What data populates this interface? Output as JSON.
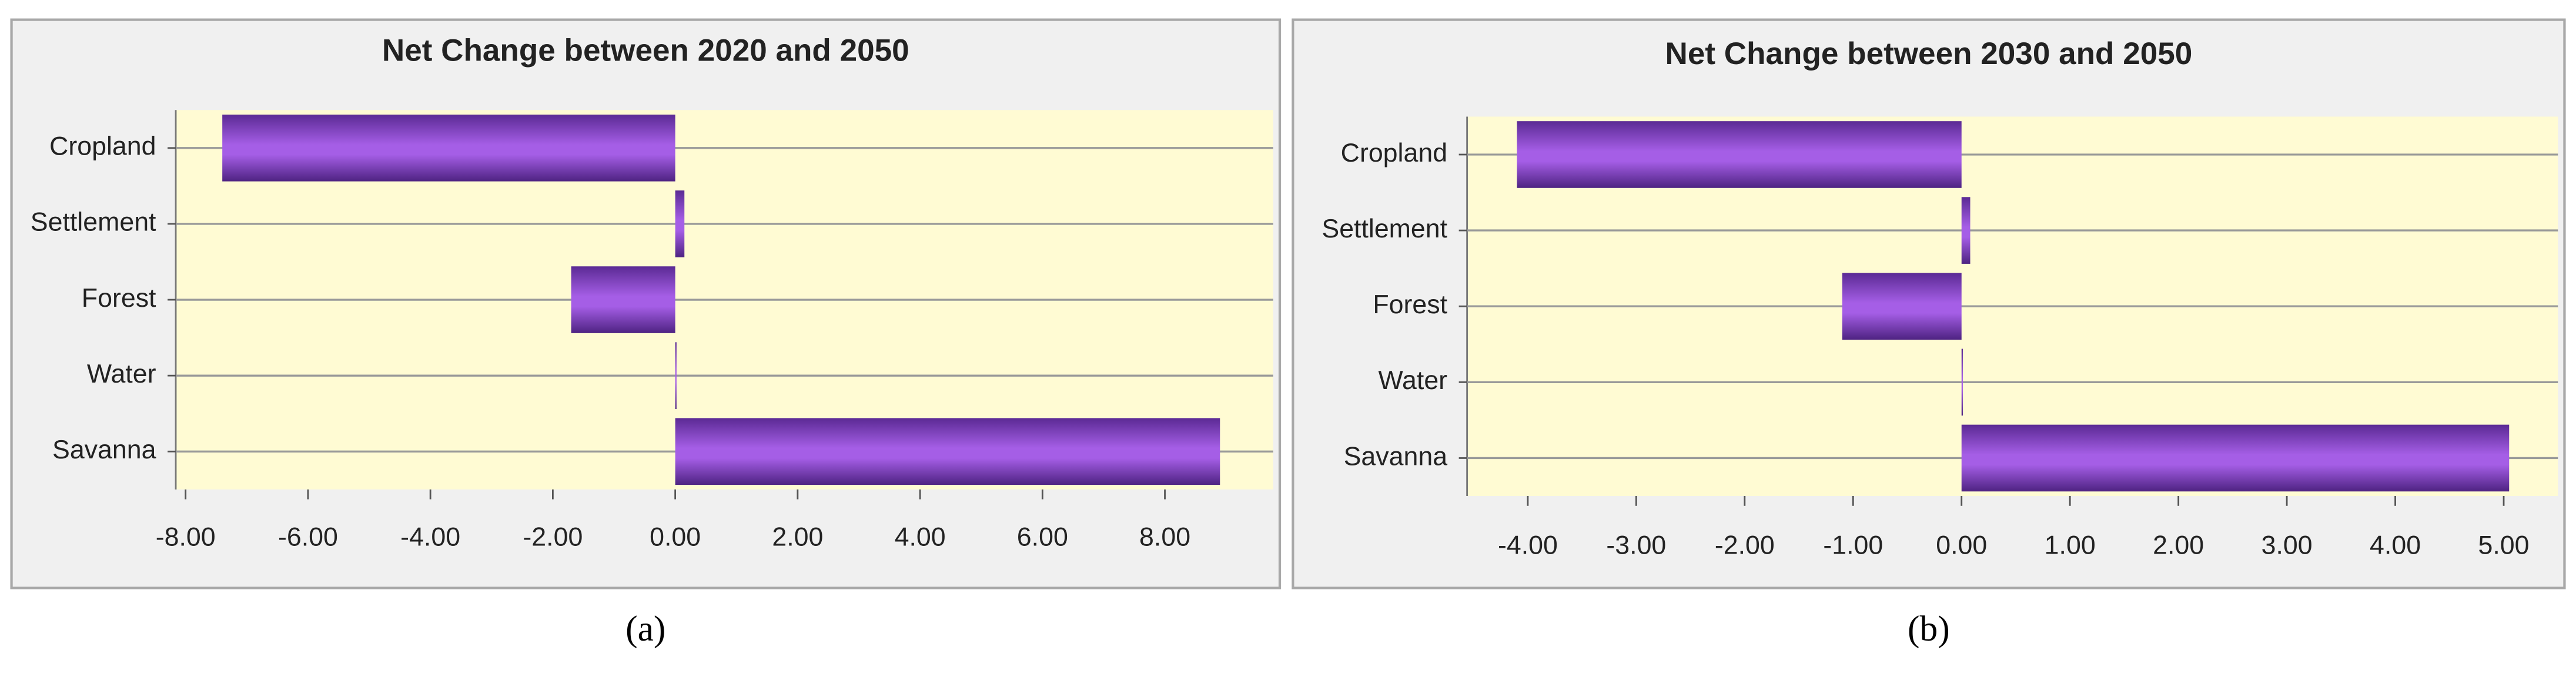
{
  "chart_data": [
    {
      "type": "bar",
      "orientation": "horizontal",
      "title": "Net Change between 2020 and 2050",
      "caption": "(a)",
      "categories": [
        "Cropland",
        "Settlement",
        "Forest",
        "Water",
        "Savanna"
      ],
      "values": [
        -7.4,
        0.15,
        -1.7,
        0.02,
        8.9
      ],
      "color": "#a55ee6",
      "xlim": [
        -8.16,
        9.77
      ],
      "xticks": [
        {
          "value": -8,
          "label": "-8.00"
        },
        {
          "value": -6,
          "label": "-6.00"
        },
        {
          "value": -4,
          "label": "-4.00"
        },
        {
          "value": -2,
          "label": "-2.00"
        },
        {
          "value": 0,
          "label": "0.00"
        },
        {
          "value": 2,
          "label": "2.00"
        },
        {
          "value": 4,
          "label": "4.00"
        },
        {
          "value": 6,
          "label": "6.00"
        },
        {
          "value": 8,
          "label": "8.00"
        }
      ],
      "grid": true
    },
    {
      "type": "bar",
      "orientation": "horizontal",
      "title": "Net Change between 2030 and 2050",
      "caption": "(b)",
      "categories": [
        "Cropland",
        "Settlement",
        "Forest",
        "Water",
        "Savanna"
      ],
      "values": [
        -4.1,
        0.08,
        -1.1,
        0.01,
        5.05
      ],
      "color": "#a55ee6",
      "xlim": [
        -4.56,
        5.5
      ],
      "xticks": [
        {
          "value": -4,
          "label": "-4.00"
        },
        {
          "value": -3,
          "label": "-3.00"
        },
        {
          "value": -2,
          "label": "-2.00"
        },
        {
          "value": -1,
          "label": "-1.00"
        },
        {
          "value": 0,
          "label": "0.00"
        },
        {
          "value": 1,
          "label": "1.00"
        },
        {
          "value": 2,
          "label": "2.00"
        },
        {
          "value": 3,
          "label": "3.00"
        },
        {
          "value": 4,
          "label": "4.00"
        },
        {
          "value": 5,
          "label": "5.00"
        }
      ],
      "grid": true
    }
  ]
}
